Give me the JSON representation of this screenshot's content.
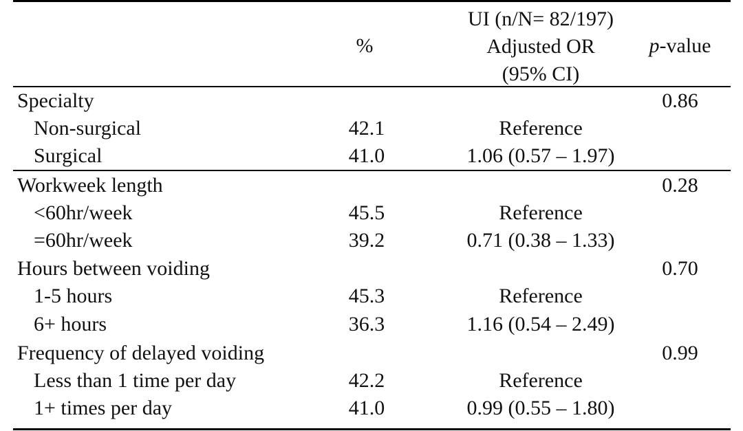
{
  "header": {
    "ui_group": "UI  (n/N= 82/197)",
    "adjusted_or": "Adjusted OR",
    "ci": "(95% CI)",
    "percent": "%",
    "p_italic": "p",
    "p_rest": "-value"
  },
  "rows": [
    {
      "label": "Specialty",
      "pct": "",
      "or": "",
      "p": "0.86"
    },
    {
      "label": "Non-surgical",
      "pct": "42.1",
      "or": "Reference",
      "p": ""
    },
    {
      "label": "Surgical",
      "pct": "41.0",
      "or": "1.06 (0.57 – 1.97)",
      "p": ""
    },
    {
      "label": "Workweek length",
      "pct": "",
      "or": "",
      "p": "0.28"
    },
    {
      "label": "<60hr/week",
      "pct": "45.5",
      "or": "Reference",
      "p": ""
    },
    {
      "label": "=60hr/week",
      "pct": "39.2",
      "or": "0.71 (0.38 – 1.33)",
      "p": ""
    },
    {
      "label": "Hours between voiding",
      "pct": "",
      "or": "",
      "p": "0.70"
    },
    {
      "label": "1-5 hours",
      "pct": "45.3",
      "or": "Reference",
      "p": ""
    },
    {
      "label": "6+ hours",
      "pct": "36.3",
      "or": "1.16 (0.54 – 2.49)",
      "p": ""
    },
    {
      "label": "Frequency of delayed voiding",
      "pct": "",
      "or": "",
      "p": "0.99"
    },
    {
      "label": "Less than 1 time per day",
      "pct": "42.2",
      "or": "Reference",
      "p": ""
    },
    {
      "label": "1+ times per day",
      "pct": "41.0",
      "or": "0.99 (0.55 – 1.80)",
      "p": ""
    }
  ]
}
